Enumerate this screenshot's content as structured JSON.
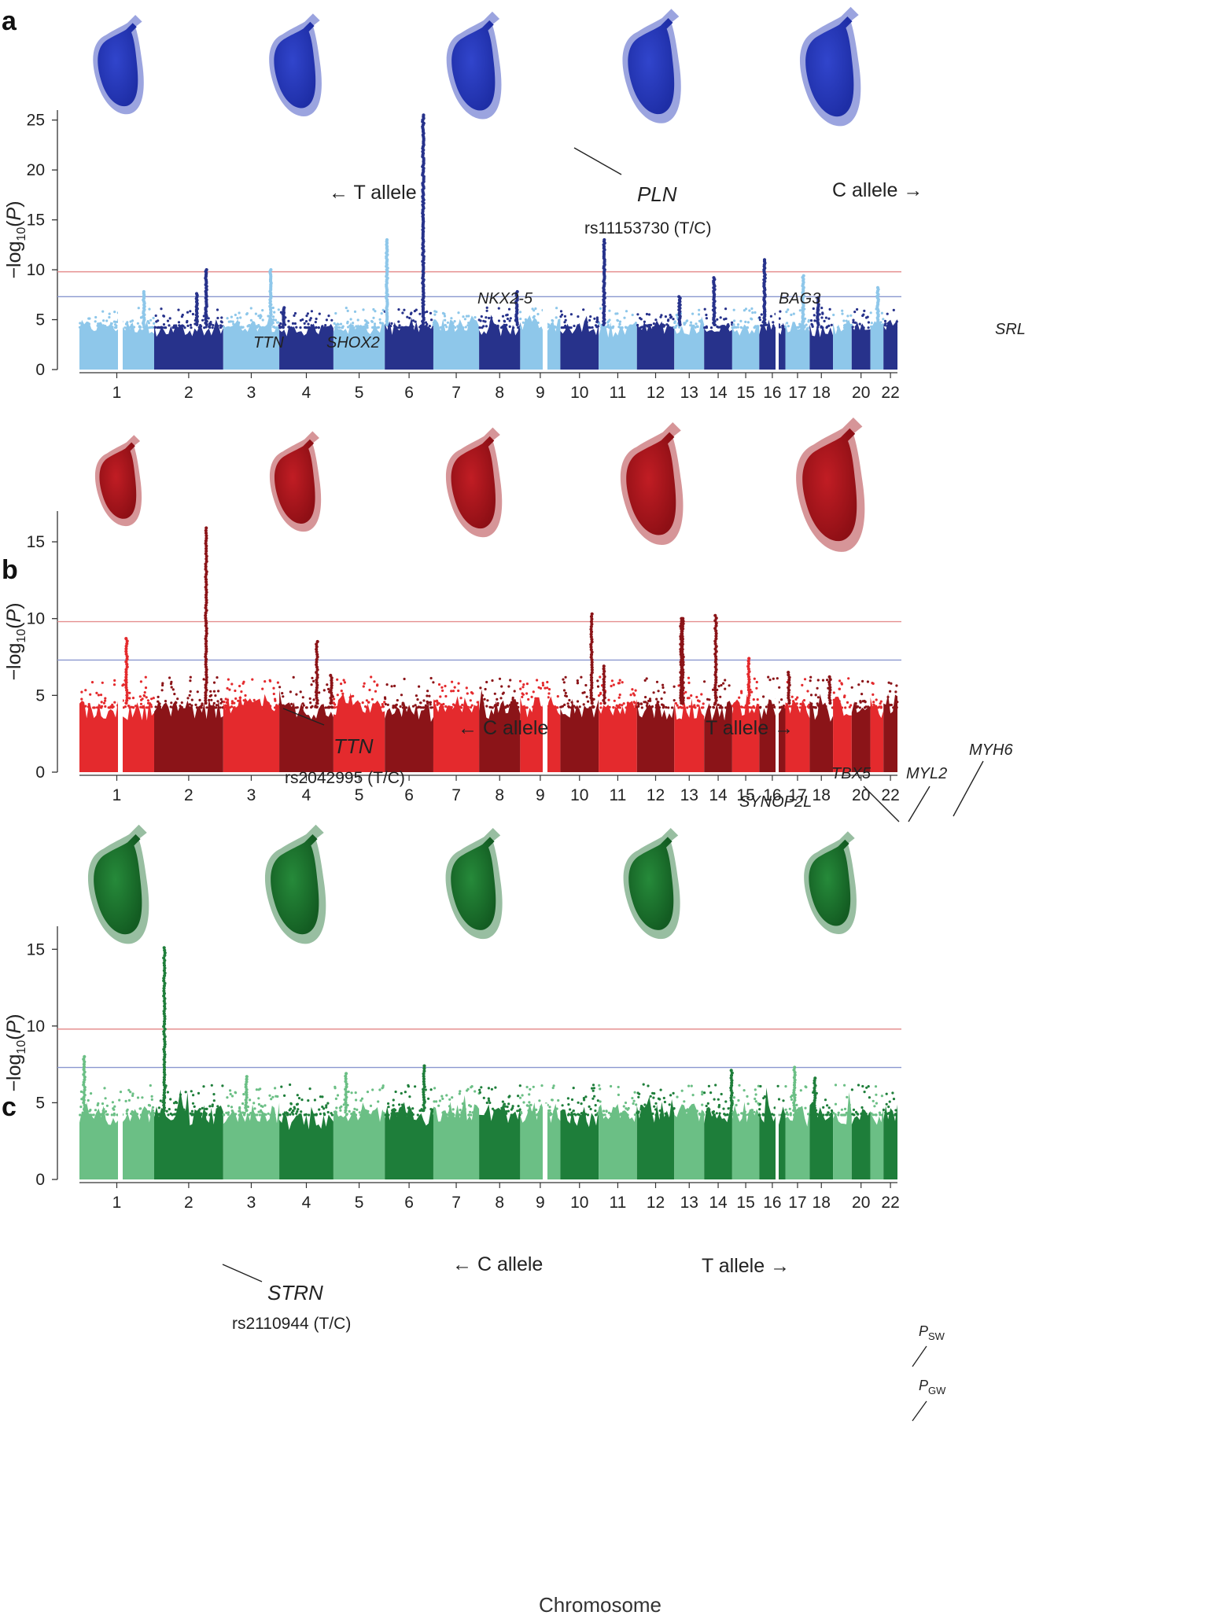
{
  "xlabel": "Chromosome",
  "ylabel_parts": [
    "−log",
    "10",
    "(",
    "P",
    ")"
  ],
  "chromosome_labels": [
    "1",
    "2",
    "3",
    "4",
    "5",
    "6",
    "7",
    "8",
    "9",
    "10",
    "11",
    "12",
    "13",
    "14",
    "15",
    "16",
    "17",
    "18",
    "20",
    "22"
  ],
  "threshold_labels": {
    "sw_main": "P",
    "sw_sub": "SW",
    "gw_main": "P",
    "gw_sub": "GW"
  },
  "colors": {
    "a_light": "#8ec7ea",
    "a_dark": "#27328b",
    "b_light": "#e42a2d",
    "b_dark": "#8b1418",
    "c_light": "#6bbf85",
    "c_dark": "#1e7e3a",
    "line_sw": "#e58f8f",
    "line_gw": "#8a97cf",
    "heart_a": "#2235b7",
    "heart_b": "#a3131a",
    "heart_c": "#1b6e2e"
  },
  "panels": [
    {
      "letter": "a",
      "allele_left": "← T allele",
      "allele_right": "C allele →",
      "lead_gene": "PLN",
      "lead_snp": "rs11153730 (T/C)",
      "genes": [
        "TTN",
        "SHOX2",
        "NKX2-5",
        "BAG3",
        "SRL"
      ]
    },
    {
      "letter": "b",
      "allele_left": "← C allele",
      "allele_right": "T allele →",
      "lead_gene": "TTN",
      "lead_snp": "rs2042995 (T/C)",
      "genes": [
        "SYNOP2L",
        "TBX5",
        "MYL2",
        "MYH6"
      ]
    },
    {
      "letter": "c",
      "allele_left": "← C allele",
      "allele_right": "T allele →",
      "lead_gene": "STRN",
      "lead_snp": "rs2110944 (T/C)",
      "genes": []
    }
  ],
  "chart_data": [
    {
      "type": "scatter",
      "title": "",
      "xlabel": "",
      "ylabel": "−log10(P)",
      "ylim": [
        0,
        26
      ],
      "yticks": [
        0,
        5,
        10,
        15,
        20,
        25
      ],
      "thresholds": {
        "study_wide": 9.8,
        "genome_wide": 7.3
      },
      "peaks": [
        {
          "chr": 6,
          "gene": "PLN",
          "snp": "rs11153730",
          "value": 25.5
        },
        {
          "chr": 2,
          "gene": "TTN",
          "value": 10.0
        },
        {
          "chr": 3,
          "gene": "SHOX2",
          "value": 10.0
        },
        {
          "chr": 5,
          "gene": "NKX2-5",
          "value": 13.0
        },
        {
          "chr": 10,
          "gene": "BAG3",
          "value": 13.0
        },
        {
          "chr": 16,
          "gene": "SRL",
          "value": 11.0
        },
        {
          "chr": 1,
          "value": 7.8
        },
        {
          "chr": 2,
          "value": 7.6
        },
        {
          "chr": 4,
          "value": 6.2
        },
        {
          "chr": 8,
          "value": 7.8
        },
        {
          "chr": 12,
          "value": 7.3
        },
        {
          "chr": 14,
          "value": 9.2
        },
        {
          "chr": 17,
          "value": 9.4
        },
        {
          "chr": 18,
          "value": 7.2
        },
        {
          "chr": 21,
          "value": 8.2
        }
      ]
    },
    {
      "type": "scatter",
      "title": "",
      "xlabel": "",
      "ylabel": "−log10(P)",
      "ylim": [
        0,
        17
      ],
      "yticks": [
        0,
        5,
        10,
        15
      ],
      "thresholds": {
        "study_wide": 9.8,
        "genome_wide": 7.3
      },
      "peaks": [
        {
          "chr": 2,
          "gene": "TTN",
          "snp": "rs2042995",
          "value": 15.9
        },
        {
          "chr": 10,
          "gene": "SYNOP2L",
          "value": 10.3
        },
        {
          "chr": 12,
          "gene": "TBX5",
          "value": 10.0
        },
        {
          "chr": 12,
          "gene": "MYL2",
          "value": 10.0
        },
        {
          "chr": 14,
          "gene": "MYH6",
          "value": 10.2
        },
        {
          "chr": 1,
          "value": 8.7
        },
        {
          "chr": 4,
          "value": 8.5
        },
        {
          "chr": 4,
          "value": 6.3
        },
        {
          "chr": 10,
          "value": 6.9
        },
        {
          "chr": 15,
          "value": 7.4
        },
        {
          "chr": 16,
          "value": 6.5
        },
        {
          "chr": 18,
          "value": 6.2
        }
      ]
    },
    {
      "type": "scatter",
      "title": "",
      "xlabel": "Chromosome",
      "ylabel": "−log10(P)",
      "ylim": [
        0,
        16.5
      ],
      "yticks": [
        0,
        5,
        10,
        15
      ],
      "thresholds": {
        "study_wide": 9.8,
        "genome_wide": 7.3
      },
      "peaks": [
        {
          "chr": 2,
          "gene": "STRN",
          "snp": "rs2110944",
          "value": 15.1
        },
        {
          "chr": 1,
          "value": 8.0
        },
        {
          "chr": 6,
          "value": 7.4
        },
        {
          "chr": 17,
          "value": 7.3
        },
        {
          "chr": 14,
          "value": 7.1
        },
        {
          "chr": 3,
          "value": 6.7
        },
        {
          "chr": 5,
          "value": 6.9
        },
        {
          "chr": 18,
          "value": 6.6
        }
      ]
    }
  ]
}
